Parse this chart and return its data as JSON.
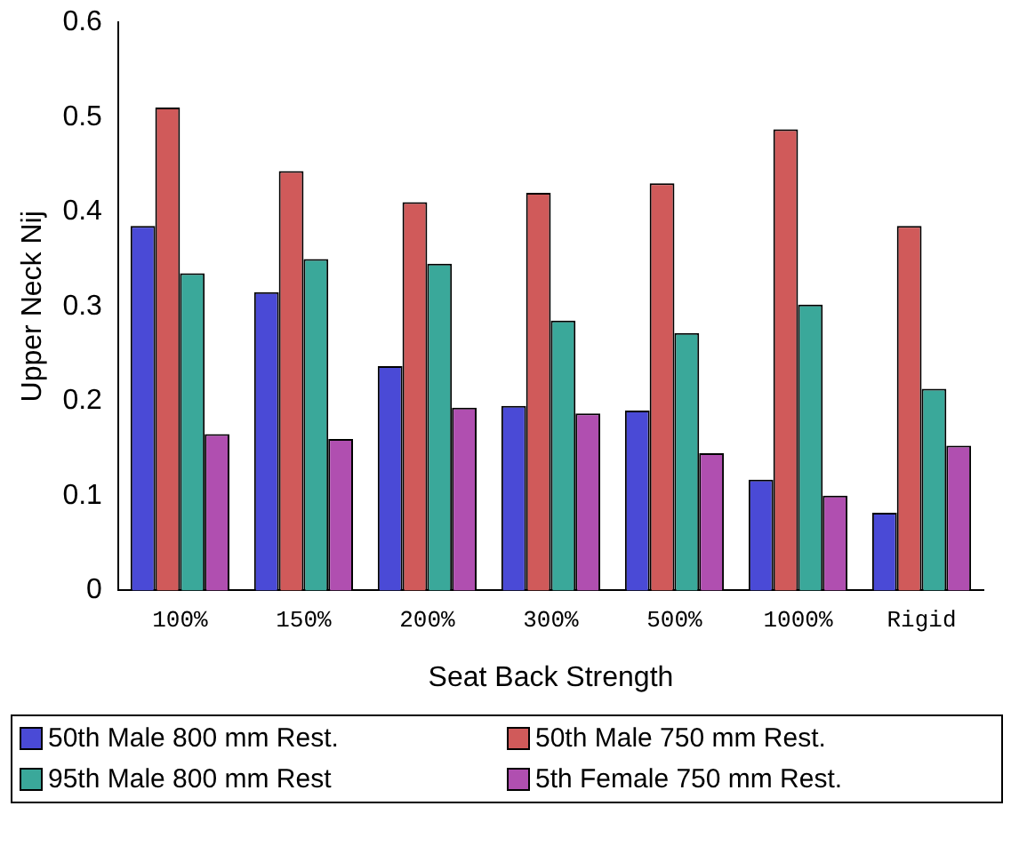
{
  "chart_data": {
    "type": "bar",
    "xlabel": "Seat Back Strength",
    "ylabel": "Upper Neck Nij",
    "categories": [
      "100%",
      "150%",
      "200%",
      "300%",
      "500%",
      "1000%",
      "Rigid"
    ],
    "series": [
      {
        "name": "50th Male 800 mm Rest.",
        "color": "#4a4ad6",
        "values": [
          0.385,
          0.315,
          0.237,
          0.195,
          0.19,
          0.117,
          0.082
        ]
      },
      {
        "name": "50th Male 750 mm Rest.",
        "color": "#d05a5a",
        "values": [
          0.51,
          0.443,
          0.41,
          0.42,
          0.43,
          0.487,
          0.385
        ]
      },
      {
        "name": "95th Male 800 mm Rest",
        "color": "#3aa89a",
        "values": [
          0.335,
          0.35,
          0.345,
          0.285,
          0.272,
          0.302,
          0.213
        ]
      },
      {
        "name": "5th Female 750 mm Rest.",
        "color": "#b04fb0",
        "values": [
          0.165,
          0.16,
          0.193,
          0.187,
          0.145,
          0.1,
          0.153
        ]
      }
    ],
    "ylim": [
      0,
      0.6
    ],
    "yticks": [
      0,
      0.1,
      0.2,
      0.3,
      0.4,
      0.5,
      0.6
    ],
    "grid": false,
    "legend": "bottom"
  }
}
